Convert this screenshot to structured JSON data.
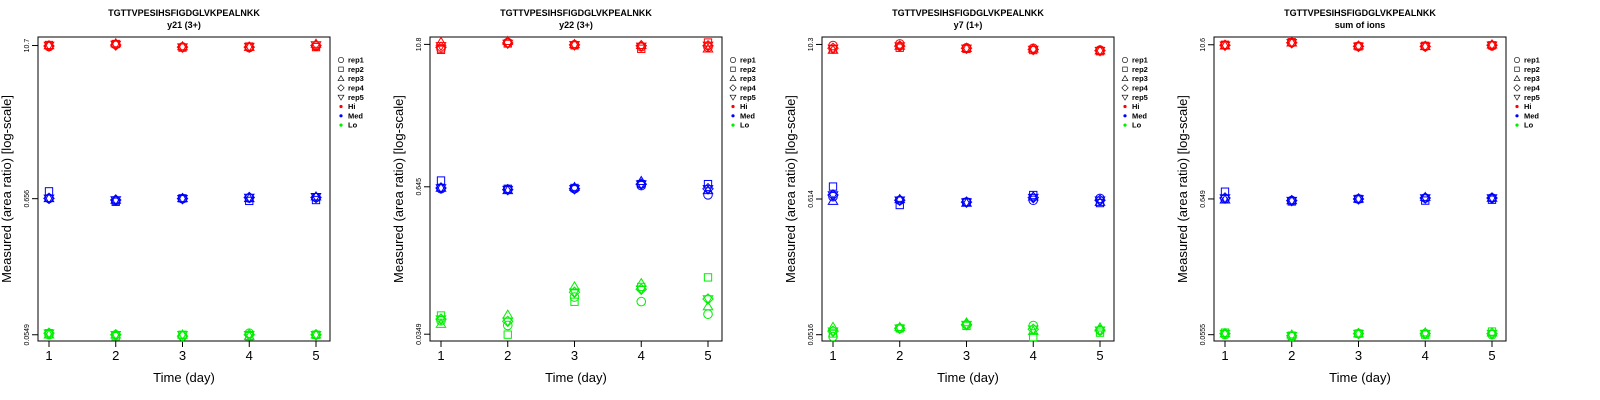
{
  "colors": {
    "Hi": "#ff0000",
    "Med": "#0000ff",
    "Lo": "#00ee00"
  },
  "legend": {
    "items": [
      {
        "label": "rep1",
        "symbol": "circle"
      },
      {
        "label": "rep2",
        "symbol": "square"
      },
      {
        "label": "rep3",
        "symbol": "triangle-up"
      },
      {
        "label": "rep4",
        "symbol": "diamond"
      },
      {
        "label": "rep5",
        "symbol": "triangle-down"
      },
      {
        "label": "Hi",
        "symbol": "dot",
        "color": "#ff0000"
      },
      {
        "label": "Med",
        "symbol": "dot",
        "color": "#0000ff"
      },
      {
        "label": "Lo",
        "symbol": "dot",
        "color": "#00ee00"
      }
    ]
  },
  "chart_data": [
    {
      "type": "scatter",
      "title": "TGTTVPESIHSFIGDGLVKPEALNKK",
      "subtitle": "y21 (3+)",
      "xlabel": "Time (day)",
      "ylabel": "Measured (area ratio) [log-scale]",
      "x_ticks": [
        "1",
        "2",
        "3",
        "4",
        "5"
      ],
      "y_ticks": [
        "0.0549",
        "0.656",
        "10.7"
      ],
      "y_tick_values": [
        0.0549,
        0.656,
        10.7
      ],
      "ylim": [
        0.049,
        12.5
      ],
      "y_scale": "log",
      "x": [
        1,
        2,
        3,
        4,
        5
      ],
      "series": [
        {
          "name": "Hi",
          "color": "#ff0000",
          "reps": [
            [
              10.5,
              10.9,
              10.4,
              10.3,
              10.6
            ],
            [
              10.8,
              11.0,
              10.3,
              10.5,
              10.4
            ],
            [
              10.7,
              11.1,
              10.5,
              10.4,
              11.0
            ],
            [
              10.6,
              10.8,
              10.4,
              10.4,
              10.7
            ],
            [
              10.7,
              10.9,
              10.4,
              10.5,
              10.8
            ]
          ]
        },
        {
          "name": "Med",
          "color": "#0000ff",
          "reps": [
            [
              0.66,
              0.63,
              0.656,
              0.665,
              0.67
            ],
            [
              0.75,
              0.62,
              0.66,
              0.63,
              0.64
            ],
            [
              0.66,
              0.64,
              0.66,
              0.66,
              0.68
            ],
            [
              0.66,
              0.64,
              0.656,
              0.67,
              0.67
            ],
            [
              0.66,
              0.64,
              0.656,
              0.67,
              0.68
            ]
          ]
        },
        {
          "name": "Lo",
          "color": "#00ee00",
          "reps": [
            [
              0.0549,
              0.0549,
              0.0535,
              0.0565,
              0.0549
            ],
            [
              0.0565,
              0.0535,
              0.0549,
              0.0535,
              0.0549
            ],
            [
              0.0549,
              0.0549,
              0.0549,
              0.0535,
              0.0549
            ],
            [
              0.0565,
              0.0549,
              0.0535,
              0.0549,
              0.0549
            ],
            [
              0.0565,
              0.0549,
              0.0549,
              0.0549,
              0.0549
            ]
          ]
        }
      ]
    },
    {
      "type": "scatter",
      "title": "TGTTVPESIHSFIGDGLVKPEALNKK",
      "subtitle": "y22 (3+)",
      "xlabel": "Time (day)",
      "ylabel": "Measured (area ratio) [log-scale]",
      "x_ticks": [
        "1",
        "2",
        "3",
        "4",
        "5"
      ],
      "y_ticks": [
        "0.0349",
        "0.645",
        "10.8"
      ],
      "y_tick_values": [
        0.0349,
        0.645,
        10.8
      ],
      "ylim": [
        0.0305,
        12.5
      ],
      "y_scale": "log",
      "x": [
        1,
        2,
        3,
        4,
        5
      ],
      "series": [
        {
          "name": "Hi",
          "color": "#ff0000",
          "reps": [
            [
              9.9,
              11.2,
              10.7,
              10.3,
              10.2
            ],
            [
              9.7,
              11.0,
              10.6,
              9.9,
              11.2
            ],
            [
              11.3,
              11.5,
              10.8,
              10.6,
              9.9
            ],
            [
              10.2,
              11.1,
              10.7,
              10.5,
              10.5
            ],
            [
              10.5,
              11.0,
              10.7,
              10.4,
              10.6
            ]
          ]
        },
        {
          "name": "Med",
          "color": "#0000ff",
          "reps": [
            [
              0.62,
              0.61,
              0.62,
              0.66,
              0.55
            ],
            [
              0.73,
              0.62,
              0.63,
              0.68,
              0.68
            ],
            [
              0.63,
              0.6,
              0.64,
              0.72,
              0.6
            ],
            [
              0.63,
              0.61,
              0.62,
              0.68,
              0.62
            ],
            [
              0.63,
              0.61,
              0.62,
              0.68,
              0.62
            ]
          ]
        },
        {
          "name": "Lo",
          "color": "#00ee00",
          "reps": [
            [
              0.0455,
              0.0415,
              0.0728,
              0.0665,
              0.0518
            ],
            [
              0.0505,
              0.0346,
              0.0663,
              0.0889,
              0.1074
            ],
            [
              0.0426,
              0.0511,
              0.0895,
              0.0955,
              0.0603
            ],
            [
              0.047,
              0.045,
              0.08,
              0.085,
              0.07
            ],
            [
              0.047,
              0.045,
              0.08,
              0.085,
              0.07
            ]
          ]
        }
      ]
    },
    {
      "type": "scatter",
      "title": "TGTTVPESIHSFIGDGLVKPEALNKK",
      "subtitle": "y7 (1+)",
      "xlabel": "Time (day)",
      "ylabel": "Measured (area ratio) [log-scale]",
      "x_ticks": [
        "1",
        "2",
        "3",
        "4",
        "5"
      ],
      "y_ticks": [
        "0.0516",
        "0.614",
        "10.3"
      ],
      "y_tick_values": [
        0.0516,
        0.614,
        10.3
      ],
      "ylim": [
        0.046,
        11.8
      ],
      "y_scale": "log",
      "x": [
        1,
        2,
        3,
        4,
        5
      ],
      "series": [
        {
          "name": "Hi",
          "color": "#ff0000",
          "reps": [
            [
              10.1,
              10.4,
              9.7,
              9.6,
              9.3
            ],
            [
              9.4,
              9.7,
              9.5,
              9.3,
              9.1
            ],
            [
              9.3,
              10.0,
              9.6,
              9.5,
              9.2
            ],
            [
              9.6,
              10.0,
              9.6,
              9.4,
              9.2
            ],
            [
              9.6,
              10.0,
              9.6,
              9.4,
              9.2
            ]
          ]
        },
        {
          "name": "Med",
          "color": "#0000ff",
          "reps": [
            [
              0.64,
              0.6,
              0.58,
              0.6,
              0.62
            ],
            [
              0.77,
              0.55,
              0.58,
              0.66,
              0.57
            ],
            [
              0.59,
              0.61,
              0.57,
              0.64,
              0.58
            ],
            [
              0.66,
              0.6,
              0.58,
              0.63,
              0.6
            ],
            [
              0.66,
              0.6,
              0.58,
              0.63,
              0.6
            ]
          ]
        },
        {
          "name": "Lo",
          "color": "#00ee00",
          "reps": [
            [
              0.0499,
              0.0579,
              0.062,
              0.061,
              0.0559
            ],
            [
              0.0528,
              0.0579,
              0.0606,
              0.0494,
              0.0536
            ],
            [
              0.0593,
              0.0591,
              0.0644,
              0.0551,
              0.0586
            ],
            [
              0.055,
              0.058,
              0.062,
              0.057,
              0.056
            ],
            [
              0.055,
              0.058,
              0.062,
              0.057,
              0.056
            ]
          ]
        }
      ]
    },
    {
      "type": "scatter",
      "title": "TGTTVPESIHSFIGDGLVKPEALNKK",
      "subtitle": "sum of ions",
      "xlabel": "Time (day)",
      "ylabel": "Measured (area ratio) [log-scale]",
      "x_ticks": [
        "1",
        "2",
        "3",
        "4",
        "5"
      ],
      "y_ticks": [
        "0.0555",
        "0.649",
        "10.6"
      ],
      "y_tick_values": [
        0.0555,
        0.649,
        10.6
      ],
      "ylim": [
        0.0495,
        12.2
      ],
      "y_scale": "log",
      "x": [
        1,
        2,
        3,
        4,
        5
      ],
      "series": [
        {
          "name": "Hi",
          "color": "#ff0000",
          "reps": [
            [
              10.5,
              11.0,
              10.3,
              10.3,
              10.4
            ],
            [
              10.6,
              11.1,
              10.3,
              10.4,
              10.5
            ],
            [
              10.4,
              11.0,
              10.4,
              10.3,
              10.6
            ],
            [
              10.5,
              11.0,
              10.3,
              10.3,
              10.5
            ],
            [
              10.5,
              11.0,
              10.3,
              10.3,
              10.5
            ]
          ]
        },
        {
          "name": "Med",
          "color": "#0000ff",
          "reps": [
            [
              0.65,
              0.63,
              0.649,
              0.66,
              0.66
            ],
            [
              0.74,
              0.62,
              0.649,
              0.63,
              0.64
            ],
            [
              0.64,
              0.63,
              0.649,
              0.67,
              0.66
            ],
            [
              0.66,
              0.63,
              0.649,
              0.66,
              0.66
            ],
            [
              0.66,
              0.63,
              0.649,
              0.66,
              0.66
            ]
          ]
        },
        {
          "name": "Lo",
          "color": "#00ee00",
          "reps": [
            [
              0.0555,
              0.0535,
              0.0566,
              0.0566,
              0.0555
            ],
            [
              0.0576,
              0.0545,
              0.0566,
              0.0555,
              0.0587
            ],
            [
              0.0566,
              0.0555,
              0.0566,
              0.0576,
              0.0576
            ],
            [
              0.0566,
              0.0545,
              0.0566,
              0.0566,
              0.0566
            ],
            [
              0.0566,
              0.0545,
              0.0566,
              0.0566,
              0.0566
            ]
          ]
        }
      ]
    }
  ]
}
